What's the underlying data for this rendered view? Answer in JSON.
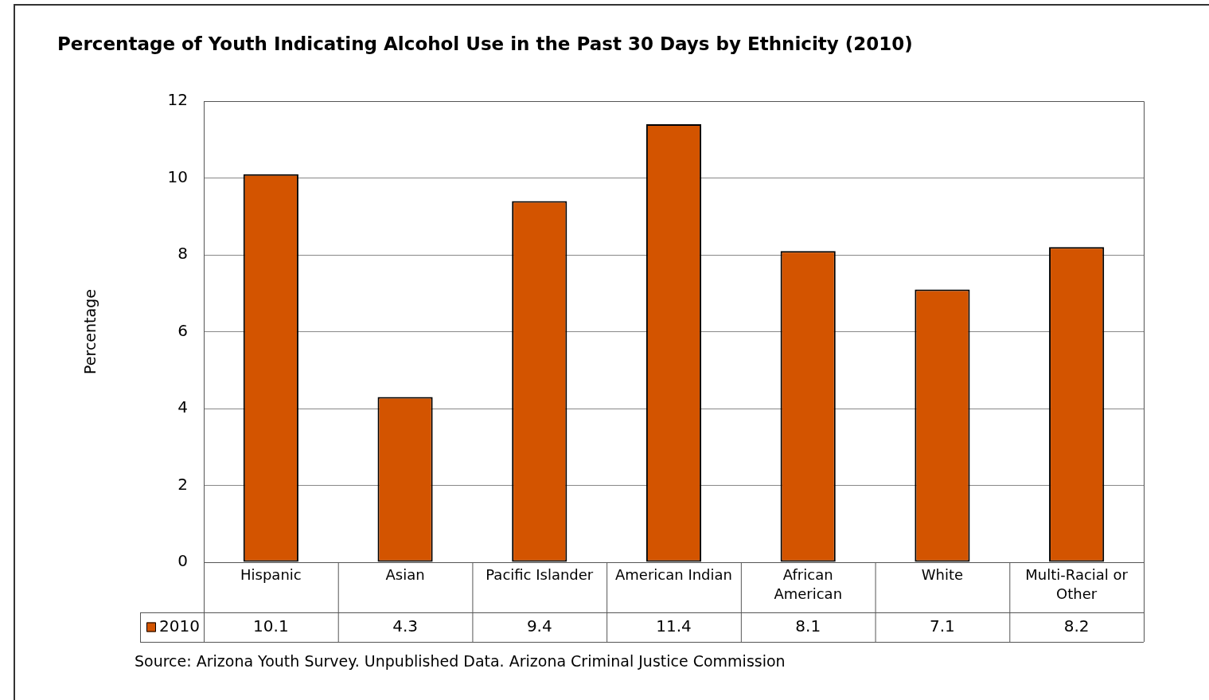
{
  "chart_data": {
    "type": "bar",
    "title": "Percentage of Youth Indicating Alcohol Use in the Past 30 Days by Ethnicity (2010)",
    "ylabel": "Percentage",
    "categories": [
      "Hispanic",
      "Asian",
      "Pacific Islander",
      "American Indian",
      "African American",
      "White",
      "Multi-Racial or Other"
    ],
    "series": [
      {
        "name": "2010",
        "color": "#d35400",
        "values": [
          10.1,
          4.3,
          9.4,
          11.4,
          8.1,
          7.1,
          8.2
        ]
      }
    ],
    "ylim": [
      0,
      12
    ],
    "yticks": [
      0,
      2,
      4,
      6,
      8,
      10,
      12
    ],
    "grid": "y",
    "data_labels": true,
    "annotations": [
      "Source: Arizona Youth Survey. Unpublished Data. Arizona Criminal Justice Commission"
    ]
  }
}
